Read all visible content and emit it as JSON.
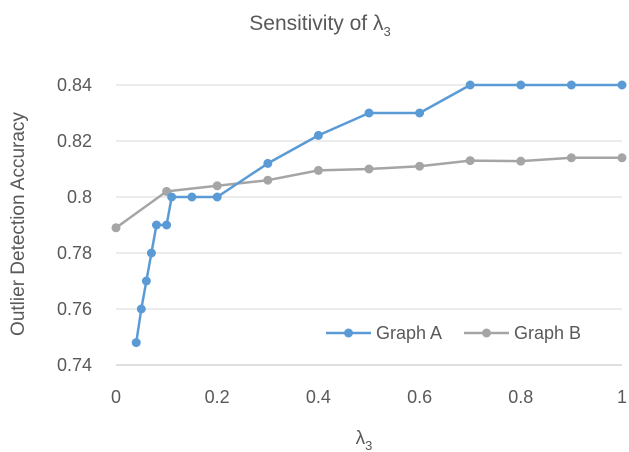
{
  "chart_data": {
    "type": "line",
    "title": "Sensitivity of λ",
    "title_subscript": "3",
    "xlabel": "λ",
    "xlabel_subscript": "3",
    "ylabel": "Outlier Detection Accuracy",
    "xlim": [
      0,
      1
    ],
    "ylim": [
      0.74,
      0.84
    ],
    "x_ticks": [
      0,
      0.2,
      0.4,
      0.6,
      0.8,
      1
    ],
    "x_tick_labels": [
      "0",
      "0.2",
      "0.4",
      "0.6",
      "0.8",
      "1"
    ],
    "y_ticks": [
      0.74,
      0.76,
      0.78,
      0.8,
      0.82,
      0.84
    ],
    "y_tick_labels": [
      "0.74",
      "0.76",
      "0.78",
      "0.8",
      "0.82",
      "0.84"
    ],
    "grid": "horizontal",
    "legend_position": "bottom-right",
    "series": [
      {
        "name": "Graph A",
        "color": "#5b9bd5",
        "x": [
          0.04,
          0.05,
          0.06,
          0.07,
          0.08,
          0.1,
          0.11,
          0.15,
          0.2,
          0.3,
          0.4,
          0.5,
          0.6,
          0.7,
          0.8,
          0.9,
          1.0
        ],
        "y": [
          0.748,
          0.76,
          0.77,
          0.78,
          0.79,
          0.79,
          0.8,
          0.8,
          0.8,
          0.812,
          0.822,
          0.83,
          0.83,
          0.84,
          0.84,
          0.84,
          0.84
        ]
      },
      {
        "name": "Graph B",
        "color": "#a5a5a5",
        "x": [
          0,
          0.1,
          0.2,
          0.3,
          0.4,
          0.5,
          0.6,
          0.7,
          0.8,
          0.9,
          1.0
        ],
        "y": [
          0.789,
          0.802,
          0.804,
          0.806,
          0.8095,
          0.81,
          0.811,
          0.813,
          0.8128,
          0.814,
          0.814
        ]
      }
    ]
  }
}
